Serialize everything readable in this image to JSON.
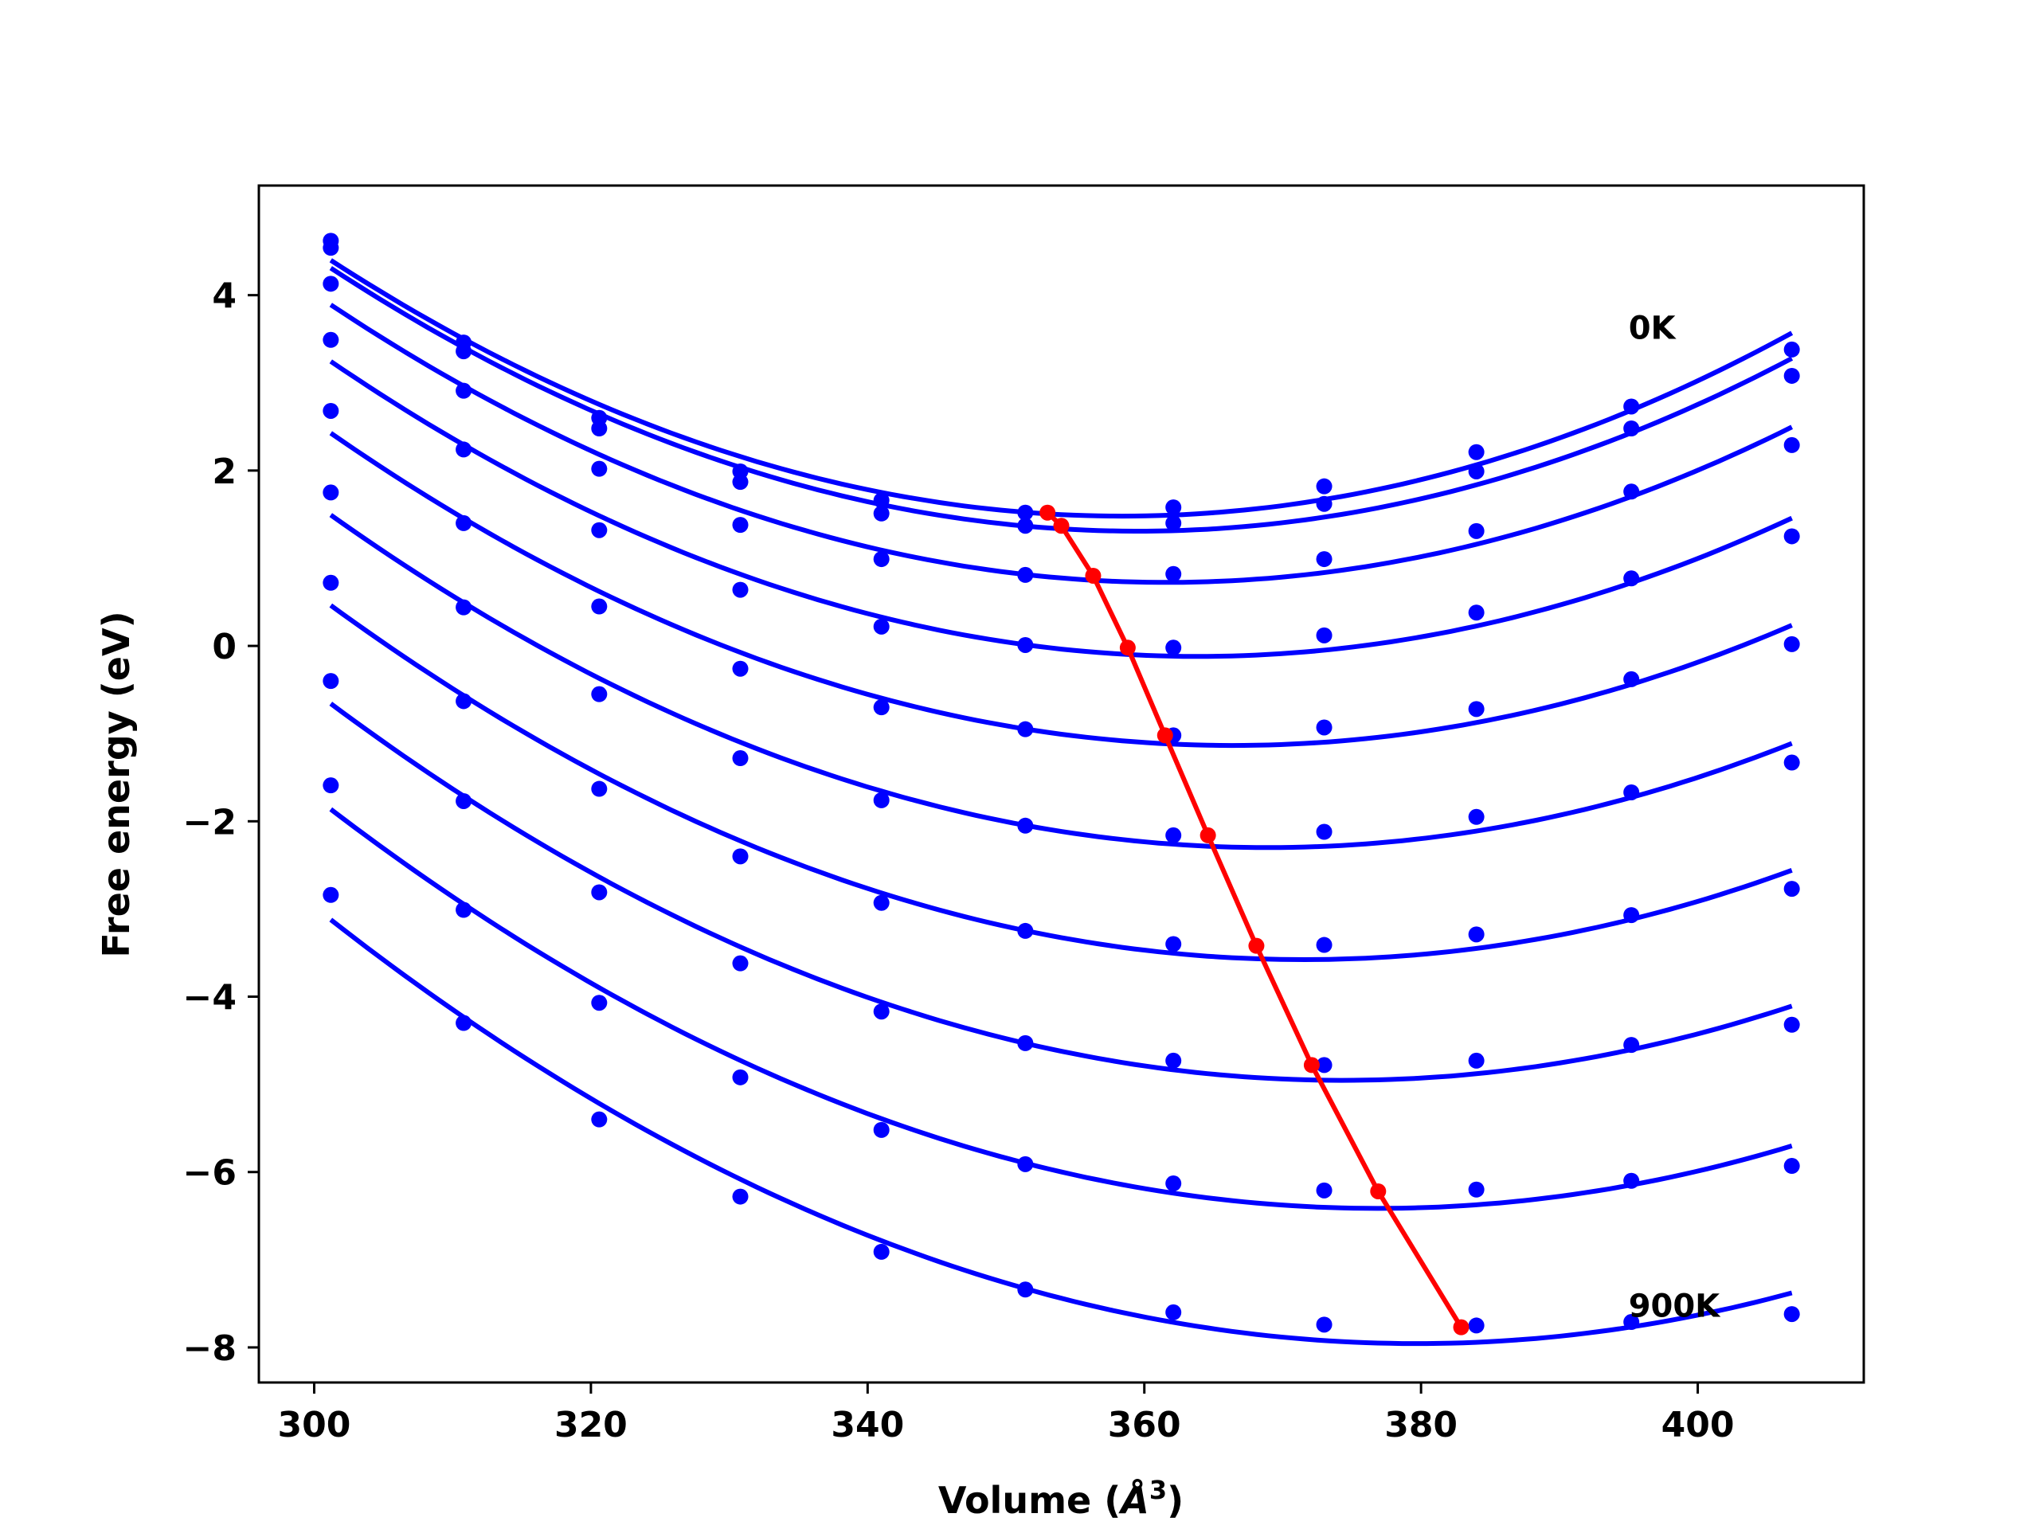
{
  "chart_data": {
    "type": "line",
    "title": "",
    "xlabel": "Volume (Å³)",
    "xlabel_main": "Volume (",
    "xlabel_unit": "Å",
    "xlabel_sup": "3",
    "xlabel_close": ")",
    "ylabel": "Free energy (eV)",
    "xlim": [
      296,
      412
    ],
    "ylim": [
      -8.4,
      5.25
    ],
    "xticks": [
      300,
      320,
      340,
      360,
      380,
      400
    ],
    "xtick_labels": [
      "300",
      "320",
      "340",
      "360",
      "380",
      "400"
    ],
    "yticks": [
      4,
      2,
      0,
      -2,
      -4,
      -6,
      -8
    ],
    "ytick_labels": [
      "4",
      "2",
      "0",
      "−2",
      "−4",
      "−6",
      "−8"
    ],
    "grid": false,
    "colors": {
      "curves": "#0000ff",
      "minimum_path": "#ff0000",
      "axes": "#000000"
    },
    "x": [
      301.2,
      310.8,
      320.6,
      330.8,
      341.0,
      351.4,
      362.1,
      373.0,
      384.0,
      395.2,
      406.8
    ],
    "series": [
      {
        "values": [
          4.62,
          3.46,
          2.6,
          1.99,
          1.66,
          1.52,
          1.58,
          1.82,
          2.21,
          2.73,
          3.38
        ]
      },
      {
        "values": [
          4.54,
          3.36,
          2.48,
          1.87,
          1.51,
          1.37,
          1.4,
          1.62,
          1.99,
          2.48,
          3.08
        ]
      },
      {
        "values": [
          4.13,
          2.91,
          2.02,
          1.38,
          0.99,
          0.81,
          0.82,
          0.99,
          1.31,
          1.76,
          2.29
        ]
      },
      {
        "values": [
          3.49,
          2.24,
          1.32,
          0.64,
          0.22,
          0.01,
          -0.02,
          0.12,
          0.38,
          0.77,
          1.25
        ]
      },
      {
        "values": [
          2.68,
          1.4,
          0.45,
          -0.26,
          -0.7,
          -0.95,
          -1.02,
          -0.93,
          -0.72,
          -0.38,
          0.02
        ]
      },
      {
        "values": [
          1.75,
          0.44,
          -0.55,
          -1.28,
          -1.76,
          -2.05,
          -2.16,
          -2.12,
          -1.95,
          -1.67,
          -1.33
        ]
      },
      {
        "values": [
          0.72,
          -0.63,
          -1.63,
          -2.4,
          -2.93,
          -3.25,
          -3.4,
          -3.41,
          -3.29,
          -3.07,
          -2.77
        ]
      },
      {
        "values": [
          -0.4,
          -1.77,
          -2.81,
          -3.62,
          -4.17,
          -4.53,
          -4.73,
          -4.78,
          -4.73,
          -4.55,
          -4.32
        ]
      },
      {
        "values": [
          -1.59,
          -3.01,
          -4.07,
          -4.92,
          -5.52,
          -5.91,
          -6.13,
          -6.21,
          -6.2,
          -6.1,
          -5.93
        ]
      },
      {
        "values": [
          -2.84,
          -4.3,
          -5.4,
          -6.28,
          -6.91,
          -7.34,
          -7.6,
          -7.74,
          -7.75,
          -7.71,
          -7.62
        ]
      }
    ],
    "minimum_path": {
      "x": [
        353.0,
        354.0,
        356.3,
        358.8,
        361.5,
        364.6,
        368.1,
        372.1,
        376.9,
        382.9
      ],
      "y": [
        1.52,
        1.37,
        0.8,
        -0.02,
        -1.02,
        -2.16,
        -3.42,
        -4.78,
        -6.22,
        -7.77
      ]
    },
    "annotations": [
      {
        "text": "0K",
        "x": 395.0,
        "y": 3.5
      },
      {
        "text": "900K",
        "x": 395.0,
        "y": -7.65
      }
    ]
  }
}
